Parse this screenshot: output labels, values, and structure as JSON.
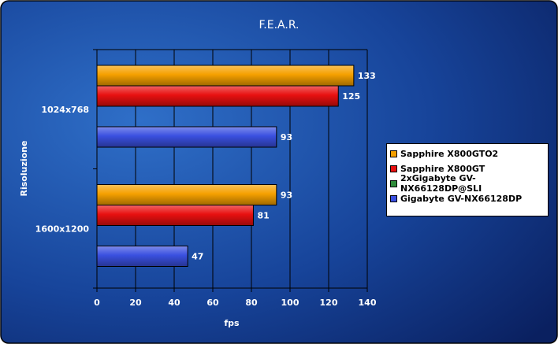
{
  "chart_data": {
    "type": "bar",
    "orientation": "horizontal",
    "title": "F.E.A.R.",
    "xlabel": "fps",
    "ylabel": "Risoluzione",
    "categories": [
      "1024x768",
      "1600x1200"
    ],
    "xlim": [
      0,
      140
    ],
    "x_ticks": [
      "0",
      "20",
      "40",
      "60",
      "80",
      "100",
      "120",
      "140"
    ],
    "grid": true,
    "legend_position": "right",
    "series": [
      {
        "name": "Sapphire X800GTO2",
        "color": "#f5a000",
        "values": [
          133,
          93
        ]
      },
      {
        "name": "Sapphire X800GT",
        "color": "#e81010",
        "values": [
          125,
          81
        ]
      },
      {
        "name": "2xGigabyte GV-NX66128DP@SLI",
        "color": "#2e8b3a",
        "values": [
          null,
          null
        ]
      },
      {
        "name": "Gigabyte GV-NX66128DP",
        "color": "#3a50e0",
        "values": [
          93,
          47
        ]
      }
    ],
    "data_labels": [
      [
        "133",
        "125",
        "",
        "93"
      ],
      [
        "93",
        "81",
        "",
        "47"
      ]
    ]
  }
}
